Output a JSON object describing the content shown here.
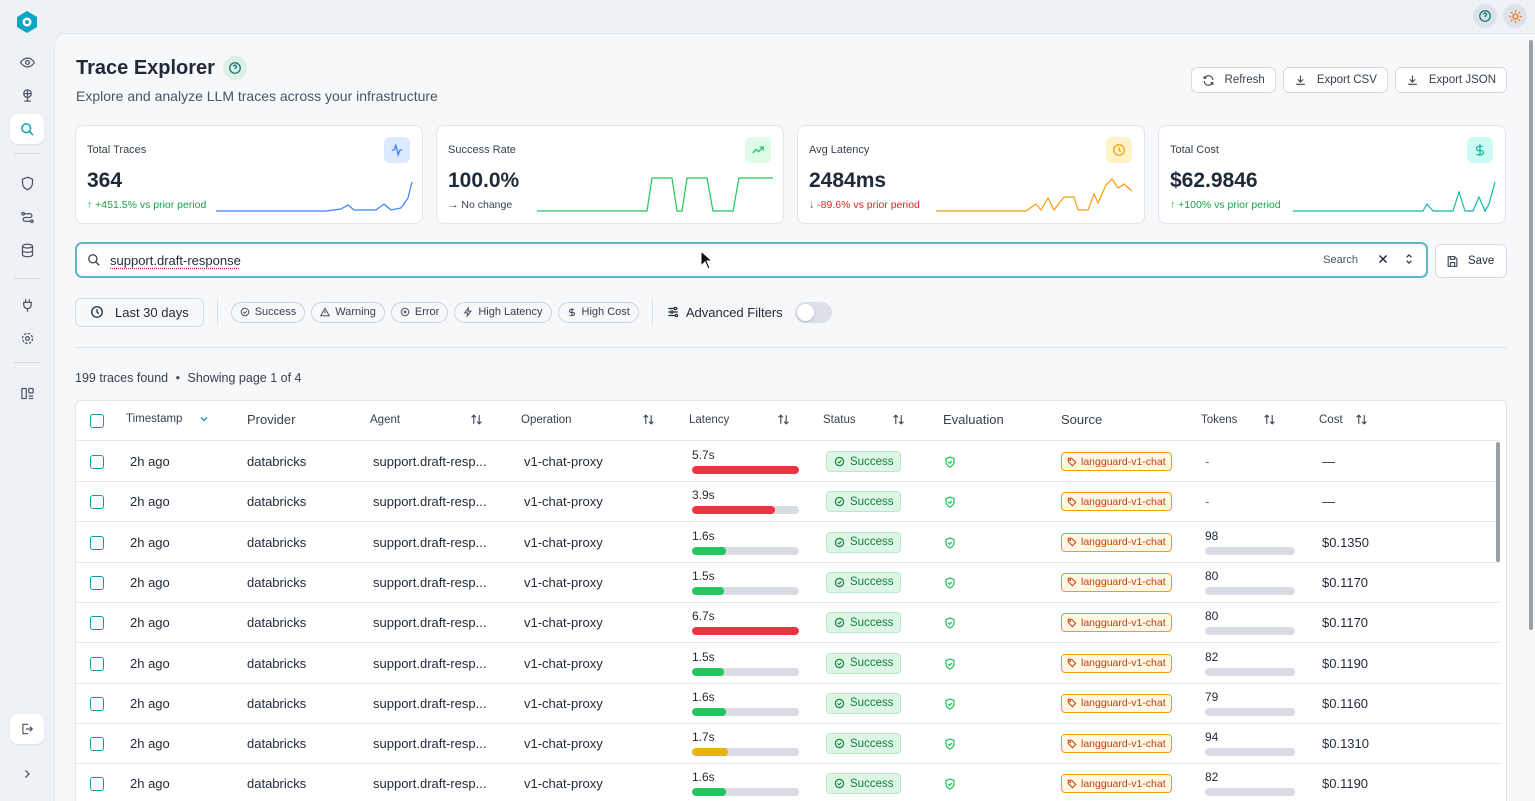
{
  "sidebar": {
    "logo": "app-logo-icon",
    "items": [
      {
        "icon": "eye-icon",
        "active": false
      },
      {
        "icon": "globe-icon",
        "active": false
      },
      {
        "icon": "search-icon",
        "active": true
      },
      {
        "icon": "shield-icon",
        "active": false
      },
      {
        "icon": "route-icon",
        "active": false
      },
      {
        "icon": "database-icon",
        "active": false
      },
      {
        "icon": "plug-icon",
        "active": false
      },
      {
        "icon": "settings-icon",
        "active": false
      },
      {
        "icon": "layout-icon",
        "active": false
      }
    ],
    "logout_icon": "logout-icon",
    "expand_icon": "chevron-right-icon"
  },
  "top": {
    "help_icon": "help-icon",
    "theme_icon": "sun-icon"
  },
  "header": {
    "title": "Trace Explorer",
    "subtitle": "Explore and analyze LLM traces across your infrastructure",
    "buttons": {
      "refresh": "Refresh",
      "export_csv": "Export CSV",
      "export_json": "Export JSON"
    }
  },
  "metrics": [
    {
      "label": "Total Traces",
      "value": "364",
      "delta": "↑ +451.5% vs prior period",
      "delta_color": "#16a34a",
      "icon": "activity-icon",
      "accent": "#3b82f6"
    },
    {
      "label": "Success Rate",
      "value": "100.0%",
      "delta": "→ No change",
      "delta_color": "#374151",
      "icon": "trending-up-icon",
      "accent": "#22c55e"
    },
    {
      "label": "Avg Latency",
      "value": "2484ms",
      "delta": "↓ -89.6% vs prior period",
      "delta_color": "#dc2626",
      "icon": "clock-icon",
      "accent": "#f59e0b"
    },
    {
      "label": "Total Cost",
      "value": "$62.9846",
      "delta": "↑ +100% vs prior period",
      "delta_color": "#16a34a",
      "icon": "dollar-icon",
      "accent": "#14b8a6"
    }
  ],
  "search": {
    "value": "support.draft-response",
    "hint": "Search",
    "save_label": "Save"
  },
  "filters": {
    "date_range": "Last 30 days",
    "chips": [
      "Success",
      "Warning",
      "Error",
      "High Latency",
      "High Cost"
    ],
    "advanced_label": "Advanced Filters",
    "advanced_on": false
  },
  "results": {
    "count": "199",
    "count_suffix": "traces found",
    "page_info": "Showing page 1 of 4"
  },
  "table": {
    "columns": [
      "Timestamp",
      "Provider",
      "Agent",
      "Operation",
      "Latency",
      "Status",
      "Evaluation",
      "Source",
      "Tokens",
      "Cost"
    ],
    "rows": [
      {
        "timestamp": "2h ago",
        "provider": "databricks",
        "agent": "support.draft-resp...",
        "operation": "v1-chat-proxy",
        "latency": "5.7s",
        "latency_pct": 100,
        "latency_color": "#ef3340",
        "status": "Success",
        "source": "langguard-v1-chat",
        "tokens": "-",
        "tokens_pct": 0,
        "cost": "—"
      },
      {
        "timestamp": "2h ago",
        "provider": "databricks",
        "agent": "support.draft-resp...",
        "operation": "v1-chat-proxy",
        "latency": "3.9s",
        "latency_pct": 78,
        "latency_color": "#ef3340",
        "status": "Success",
        "source": "langguard-v1-chat",
        "tokens": "-",
        "tokens_pct": 0,
        "cost": "—"
      },
      {
        "timestamp": "2h ago",
        "provider": "databricks",
        "agent": "support.draft-resp...",
        "operation": "v1-chat-proxy",
        "latency": "1.6s",
        "latency_pct": 32,
        "latency_color": "#22c55e",
        "status": "Success",
        "source": "langguard-v1-chat",
        "tokens": "98",
        "tokens_pct": 100,
        "cost": "$0.1350"
      },
      {
        "timestamp": "2h ago",
        "provider": "databricks",
        "agent": "support.draft-resp...",
        "operation": "v1-chat-proxy",
        "latency": "1.5s",
        "latency_pct": 30,
        "latency_color": "#22c55e",
        "status": "Success",
        "source": "langguard-v1-chat",
        "tokens": "80",
        "tokens_pct": 100,
        "cost": "$0.1170"
      },
      {
        "timestamp": "2h ago",
        "provider": "databricks",
        "agent": "support.draft-resp...",
        "operation": "v1-chat-proxy",
        "latency": "6.7s",
        "latency_pct": 100,
        "latency_color": "#ef3340",
        "status": "Success",
        "source": "langguard-v1-chat",
        "tokens": "80",
        "tokens_pct": 100,
        "cost": "$0.1170"
      },
      {
        "timestamp": "2h ago",
        "provider": "databricks",
        "agent": "support.draft-resp...",
        "operation": "v1-chat-proxy",
        "latency": "1.5s",
        "latency_pct": 30,
        "latency_color": "#22c55e",
        "status": "Success",
        "source": "langguard-v1-chat",
        "tokens": "82",
        "tokens_pct": 100,
        "cost": "$0.1190"
      },
      {
        "timestamp": "2h ago",
        "provider": "databricks",
        "agent": "support.draft-resp...",
        "operation": "v1-chat-proxy",
        "latency": "1.6s",
        "latency_pct": 32,
        "latency_color": "#22c55e",
        "status": "Success",
        "source": "langguard-v1-chat",
        "tokens": "79",
        "tokens_pct": 100,
        "cost": "$0.1160"
      },
      {
        "timestamp": "2h ago",
        "provider": "databricks",
        "agent": "support.draft-resp...",
        "operation": "v1-chat-proxy",
        "latency": "1.7s",
        "latency_pct": 34,
        "latency_color": "#eab308",
        "status": "Success",
        "source": "langguard-v1-chat",
        "tokens": "94",
        "tokens_pct": 100,
        "cost": "$0.1310"
      },
      {
        "timestamp": "2h ago",
        "provider": "databricks",
        "agent": "support.draft-resp...",
        "operation": "v1-chat-proxy",
        "latency": "1.6s",
        "latency_pct": 32,
        "latency_color": "#22c55e",
        "status": "Success",
        "source": "langguard-v1-chat",
        "tokens": "82",
        "tokens_pct": 100,
        "cost": "$0.1190"
      }
    ]
  }
}
